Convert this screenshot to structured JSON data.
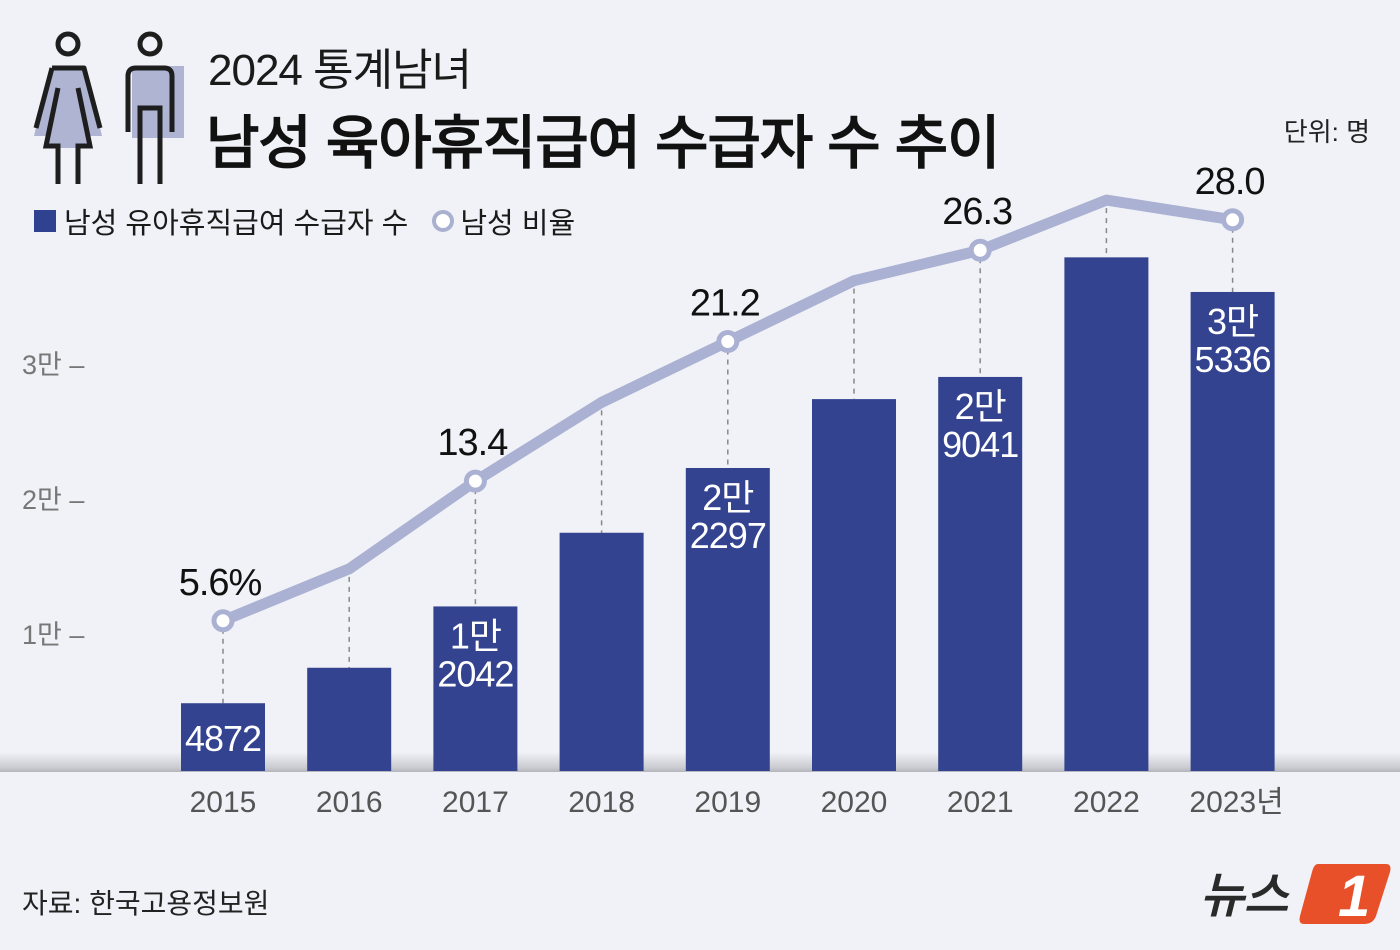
{
  "header": {
    "subtitle": "2024 통계남녀",
    "title": "남성 육아휴직급여 수급자 수 추이",
    "unit": "단위: 명"
  },
  "legend": {
    "bar_label": "남성 유아휴직급여 수급자 수",
    "line_label": "남성 비율"
  },
  "footer": {
    "source": "자료: 한국고용정보원",
    "logo_text": "뉴스",
    "logo_mark": "1"
  },
  "colors": {
    "bar": "#33438f",
    "line": "#aab1d2",
    "background": "#f1f2f7",
    "logo_accent": "#e8502a"
  },
  "chart_data": {
    "type": "bar",
    "title": "남성 육아휴직급여 수급자 수 추이",
    "xlabel": "",
    "ylabel": "명",
    "ylim": [
      0,
      40000
    ],
    "grid": false,
    "legend_position": "top-left",
    "categories": [
      "2015",
      "2016",
      "2017",
      "2018",
      "2019",
      "2020",
      "2021",
      "2022",
      "2023년"
    ],
    "y_ticks": [
      {
        "value": 10000,
        "label": "1만 –"
      },
      {
        "value": 20000,
        "label": "2만 –"
      },
      {
        "value": 30000,
        "label": "3만 –"
      }
    ],
    "series": [
      {
        "name": "남성 유아휴직급여 수급자 수",
        "type": "bar",
        "values": [
          4872,
          7500,
          12042,
          17500,
          22297,
          27400,
          29041,
          37900,
          35336
        ],
        "labels": [
          [
            "4872"
          ],
          [],
          [
            "1만",
            "2042"
          ],
          [],
          [
            "2만",
            "2297"
          ],
          [],
          [
            "2만",
            "9041"
          ],
          [],
          [
            "3만",
            "5336"
          ]
        ]
      },
      {
        "name": "남성 비율",
        "type": "line",
        "unit": "%",
        "values": [
          5.6,
          8.5,
          13.4,
          17.8,
          21.2,
          24.6,
          26.3,
          29.1,
          28.0
        ],
        "labels": [
          "5.6%",
          "",
          "13.4",
          "",
          "21.2",
          "",
          "26.3",
          "",
          "28.0"
        ]
      }
    ]
  }
}
